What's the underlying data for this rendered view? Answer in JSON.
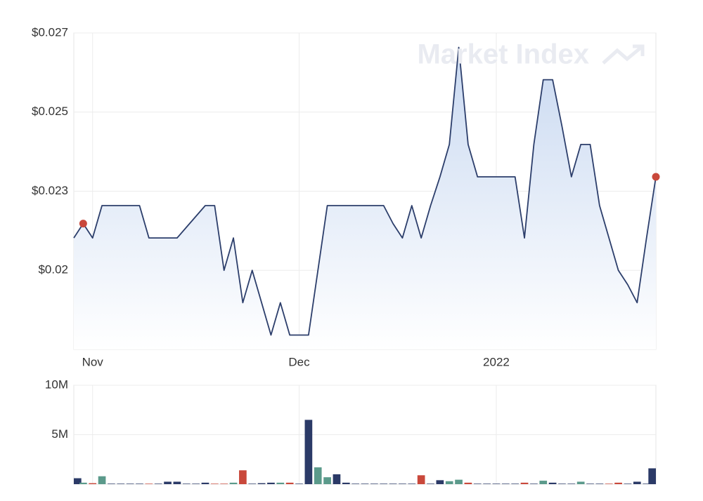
{
  "chart_data": [
    {
      "type": "area",
      "watermark": "Market Index",
      "color": "#2c3e6b",
      "fill_top": "#c9d9f1",
      "fill_bottom": "#ffffff",
      "marker_color": "#c9483b",
      "highlight_points": [
        1,
        62
      ],
      "grid": true,
      "categories": [
        null,
        null,
        "Nov",
        null,
        null,
        null,
        null,
        null,
        null,
        null,
        null,
        null,
        null,
        null,
        null,
        null,
        null,
        null,
        null,
        null,
        null,
        null,
        null,
        null,
        "Dec",
        null,
        null,
        null,
        null,
        null,
        null,
        null,
        null,
        null,
        null,
        null,
        null,
        null,
        null,
        null,
        null,
        null,
        null,
        null,
        null,
        "2022",
        null,
        null,
        null,
        null,
        null,
        null,
        null,
        null,
        null,
        null,
        null,
        null,
        null,
        null,
        null,
        null,
        null
      ],
      "values": [
        0.0213,
        0.0217,
        0.0213,
        0.0222,
        0.0222,
        0.0222,
        0.0222,
        0.0222,
        0.0213,
        0.0213,
        0.0213,
        0.0213,
        0.0216,
        0.0219,
        0.0222,
        0.0222,
        0.0204,
        0.0213,
        0.0195,
        0.0204,
        0.0195,
        0.0186,
        0.0195,
        0.0186,
        0.0186,
        0.0186,
        0.0204,
        0.0222,
        0.0222,
        0.0222,
        0.0222,
        0.0222,
        0.0222,
        0.0222,
        0.0217,
        0.0213,
        0.0222,
        0.0213,
        0.0222,
        0.023,
        0.0239,
        0.0266,
        0.0239,
        0.023,
        0.023,
        0.023,
        0.023,
        0.023,
        0.0213,
        0.0239,
        0.0257,
        0.0257,
        0.0244,
        0.023,
        0.0239,
        0.0239,
        0.0222,
        0.0213,
        0.0204,
        0.02,
        0.0195,
        0.0213,
        0.023
      ],
      "ylim": [
        0.0182,
        0.027
      ],
      "yticks": [
        {
          "value": 0.027,
          "label": "$0.027"
        },
        {
          "value": 0.0248,
          "label": "$0.025"
        },
        {
          "value": 0.0226,
          "label": "$0.023"
        },
        {
          "value": 0.0204,
          "label": "$0.02"
        }
      ]
    },
    {
      "type": "bar",
      "grid": true,
      "values": [
        600000,
        150000,
        100000,
        800000,
        50000,
        50000,
        50000,
        50000,
        50000,
        50000,
        250000,
        250000,
        50000,
        50000,
        150000,
        50000,
        50000,
        150000,
        1400000,
        50000,
        100000,
        150000,
        150000,
        150000,
        50000,
        6500000,
        1700000,
        700000,
        1000000,
        150000,
        50000,
        50000,
        50000,
        50000,
        50000,
        50000,
        50000,
        900000,
        50000,
        400000,
        300000,
        450000,
        150000,
        50000,
        50000,
        50000,
        50000,
        50000,
        150000,
        50000,
        350000,
        150000,
        50000,
        50000,
        250000,
        50000,
        50000,
        50000,
        150000,
        50000,
        250000,
        50000,
        1600000
      ],
      "colors": [
        "#2b3a67",
        "#5b9a8b",
        "#c9483b",
        "#5b9a8b",
        "#2b3a67",
        "#2b3a67",
        "#2b3a67",
        "#2b3a67",
        "#c9483b",
        "#2b3a67",
        "#2b3a67",
        "#2b3a67",
        "#2b3a67",
        "#2b3a67",
        "#2b3a67",
        "#c9483b",
        "#c9483b",
        "#5b9a8b",
        "#c9483b",
        "#2b3a67",
        "#2b3a67",
        "#2b3a67",
        "#5b9a8b",
        "#c9483b",
        "#2b3a67",
        "#2b3a67",
        "#5b9a8b",
        "#5b9a8b",
        "#2b3a67",
        "#2b3a67",
        "#2b3a67",
        "#2b3a67",
        "#2b3a67",
        "#2b3a67",
        "#2b3a67",
        "#2b3a67",
        "#2b3a67",
        "#c9483b",
        "#2b3a67",
        "#2b3a67",
        "#5b9a8b",
        "#5b9a8b",
        "#c9483b",
        "#2b3a67",
        "#2b3a67",
        "#2b3a67",
        "#2b3a67",
        "#2b3a67",
        "#c9483b",
        "#2b3a67",
        "#5b9a8b",
        "#2b3a67",
        "#2b3a67",
        "#2b3a67",
        "#5b9a8b",
        "#2b3a67",
        "#2b3a67",
        "#c9483b",
        "#c9483b",
        "#2b3a67",
        "#2b3a67",
        "#2b3a67",
        "#2b3a67"
      ],
      "ylim": [
        0,
        10000000
      ],
      "yticks": [
        {
          "value": 10000000,
          "label": "10M"
        },
        {
          "value": 5000000,
          "label": "5M"
        }
      ]
    }
  ]
}
